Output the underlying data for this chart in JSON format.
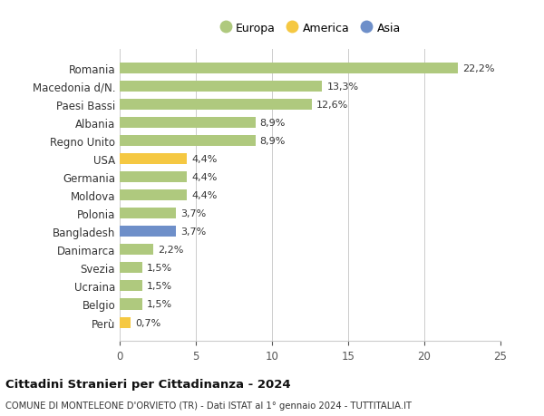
{
  "countries": [
    "Romania",
    "Macedonia d/N.",
    "Paesi Bassi",
    "Albania",
    "Regno Unito",
    "USA",
    "Germania",
    "Moldova",
    "Polonia",
    "Bangladesh",
    "Danimarca",
    "Svezia",
    "Ucraina",
    "Belgio",
    "Perù"
  ],
  "values": [
    22.2,
    13.3,
    12.6,
    8.9,
    8.9,
    4.4,
    4.4,
    4.4,
    3.7,
    3.7,
    2.2,
    1.5,
    1.5,
    1.5,
    0.7
  ],
  "labels": [
    "22,2%",
    "13,3%",
    "12,6%",
    "8,9%",
    "8,9%",
    "4,4%",
    "4,4%",
    "4,4%",
    "3,7%",
    "3,7%",
    "2,2%",
    "1,5%",
    "1,5%",
    "1,5%",
    "0,7%"
  ],
  "continents": [
    "Europa",
    "Europa",
    "Europa",
    "Europa",
    "Europa",
    "America",
    "Europa",
    "Europa",
    "Europa",
    "Asia",
    "Europa",
    "Europa",
    "Europa",
    "Europa",
    "America"
  ],
  "colors": {
    "Europa": "#afc97e",
    "America": "#f5c842",
    "Asia": "#6e8fc9"
  },
  "legend": [
    {
      "label": "Europa",
      "color": "#afc97e"
    },
    {
      "label": "America",
      "color": "#f5c842"
    },
    {
      "label": "Asia",
      "color": "#6e8fc9"
    }
  ],
  "xlim": [
    0,
    25
  ],
  "xticks": [
    0,
    5,
    10,
    15,
    20,
    25
  ],
  "title": "Cittadini Stranieri per Cittadinanza - 2024",
  "subtitle": "COMUNE DI MONTELEONE D'ORVIETO (TR) - Dati ISTAT al 1° gennaio 2024 - TUTTITALIA.IT",
  "background_color": "#ffffff",
  "grid_color": "#cccccc",
  "bar_height": 0.6
}
